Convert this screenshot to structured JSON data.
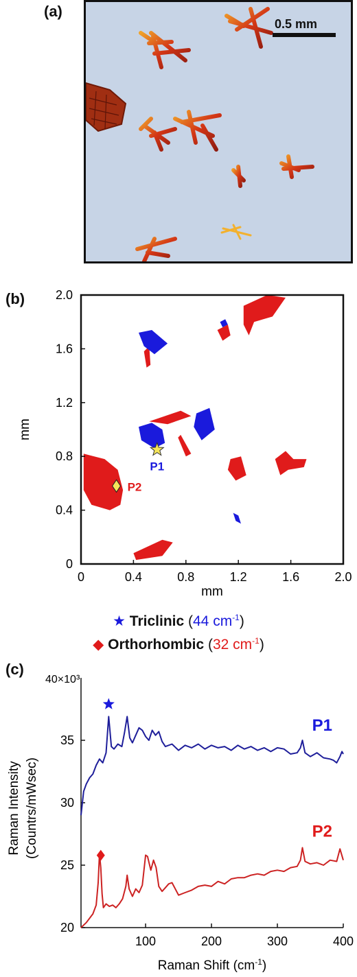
{
  "panels": {
    "a": "(a)",
    "b": "(b)",
    "c": "(c)"
  },
  "micrograph": {
    "scale_bar": "0.5 mm"
  },
  "colors": {
    "triclinic": "#1a1adc",
    "orthorhombic": "#e01b1b",
    "p1_line": "#1e1e9a",
    "p2_line": "#cc2222",
    "marker_fill": "#f5e55a"
  },
  "legend": {
    "triclinic": {
      "icon": "star-icon",
      "name": "Triclinic",
      "open": " (",
      "value": "44 cm",
      "sup": "-1",
      "close": ")"
    },
    "orthorhombic": {
      "icon": "diamond-icon",
      "name": "Orthorhombic",
      "open": " (",
      "value": "32 cm",
      "sup": "-1",
      "close": ")"
    }
  },
  "chart_data": [
    {
      "type": "heatmap",
      "xlabel": "mm",
      "ylabel": "mm",
      "xlim": [
        0,
        2.0
      ],
      "ylim": [
        0,
        2.0
      ],
      "xticks": [
        "0",
        "0.4",
        "0.8",
        "1.2",
        "1.6",
        "2.0"
      ],
      "yticks": [
        "0",
        "0.4",
        "0.8",
        "1.2",
        "1.6",
        "2.0"
      ],
      "points": [
        {
          "label": "P1",
          "x": 0.58,
          "y": 0.85,
          "phase": "Triclinic",
          "marker": "star"
        },
        {
          "label": "P2",
          "x": 0.27,
          "y": 0.58,
          "phase": "Orthorhombic",
          "marker": "diamond"
        }
      ],
      "regions": {
        "Orthorhombic": [
          [
            [
              0.02,
              0.82
            ],
            [
              0.18,
              0.78
            ],
            [
              0.28,
              0.7
            ],
            [
              0.32,
              0.55
            ],
            [
              0.3,
              0.44
            ],
            [
              0.22,
              0.4
            ],
            [
              0.08,
              0.44
            ],
            [
              0.02,
              0.55
            ]
          ],
          [
            [
              0.4,
              0.08
            ],
            [
              0.62,
              0.18
            ],
            [
              0.7,
              0.16
            ],
            [
              0.62,
              0.06
            ],
            [
              0.42,
              0.03
            ]
          ],
          [
            [
              1.04,
              1.74
            ],
            [
              1.12,
              1.78
            ],
            [
              1.14,
              1.7
            ],
            [
              1.08,
              1.66
            ]
          ],
          [
            [
              1.24,
              1.92
            ],
            [
              1.42,
              2.0
            ],
            [
              1.56,
              1.98
            ],
            [
              1.46,
              1.84
            ],
            [
              1.32,
              1.8
            ],
            [
              1.28,
              1.7
            ],
            [
              1.24,
              1.78
            ]
          ],
          [
            [
              1.48,
              0.78
            ],
            [
              1.56,
              0.84
            ],
            [
              1.62,
              0.78
            ],
            [
              1.72,
              0.78
            ],
            [
              1.7,
              0.72
            ],
            [
              1.58,
              0.7
            ],
            [
              1.52,
              0.66
            ]
          ],
          [
            [
              1.14,
              0.78
            ],
            [
              1.22,
              0.8
            ],
            [
              1.26,
              0.66
            ],
            [
              1.18,
              0.62
            ],
            [
              1.12,
              0.7
            ]
          ],
          [
            [
              0.52,
              1.06
            ],
            [
              0.76,
              1.14
            ],
            [
              0.84,
              1.1
            ],
            [
              0.66,
              1.04
            ]
          ],
          [
            [
              0.76,
              0.96
            ],
            [
              0.84,
              0.82
            ],
            [
              0.8,
              0.8
            ],
            [
              0.74,
              0.94
            ]
          ],
          [
            [
              0.48,
              1.58
            ],
            [
              0.52,
              1.62
            ],
            [
              0.53,
              1.48
            ],
            [
              0.5,
              1.46
            ]
          ]
        ],
        "Triclinic": [
          [
            [
              0.44,
              1.02
            ],
            [
              0.54,
              1.05
            ],
            [
              0.62,
              1.0
            ],
            [
              0.64,
              0.9
            ],
            [
              0.56,
              0.86
            ],
            [
              0.46,
              0.92
            ]
          ],
          [
            [
              0.44,
              1.72
            ],
            [
              0.54,
              1.74
            ],
            [
              0.66,
              1.64
            ],
            [
              0.56,
              1.56
            ],
            [
              0.48,
              1.62
            ]
          ],
          [
            [
              0.88,
              1.12
            ],
            [
              0.98,
              1.16
            ],
            [
              1.02,
              1.0
            ],
            [
              0.92,
              0.92
            ],
            [
              0.86,
              1.02
            ]
          ],
          [
            [
              1.06,
              1.8
            ],
            [
              1.1,
              1.82
            ],
            [
              1.12,
              1.78
            ],
            [
              1.08,
              1.76
            ]
          ],
          [
            [
              1.16,
              0.38
            ],
            [
              1.2,
              0.36
            ],
            [
              1.22,
              0.3
            ],
            [
              1.18,
              0.32
            ]
          ]
        ]
      }
    },
    {
      "type": "line",
      "xlabel": "Raman Shift (cm-1)",
      "ylabel_line1": "Raman Intensity",
      "ylabel_line2": "(Countrs/mWsec)",
      "xlim": [
        2,
        400
      ],
      "ylim": [
        20000,
        40000
      ],
      "y_multiplier": "40×10³",
      "xticks": [
        "100",
        "200",
        "300",
        "400"
      ],
      "yticks": [
        "20",
        "25",
        "30",
        "35"
      ],
      "series": [
        {
          "name": "P1",
          "marker": "star",
          "marker_at": 44,
          "x": [
            2,
            6,
            10,
            15,
            20,
            25,
            30,
            35,
            40,
            44,
            48,
            52,
            58,
            64,
            68,
            72,
            76,
            80,
            85,
            90,
            95,
            100,
            105,
            110,
            115,
            120,
            125,
            130,
            140,
            150,
            160,
            170,
            180,
            190,
            200,
            210,
            220,
            230,
            240,
            250,
            260,
            270,
            280,
            290,
            300,
            310,
            320,
            330,
            335,
            338,
            342,
            350,
            360,
            370,
            380,
            385,
            390,
            395,
            398,
            400
          ],
          "y": [
            29000,
            30900,
            31500,
            32000,
            32300,
            33000,
            33500,
            33200,
            34000,
            36900,
            34500,
            34300,
            34700,
            34500,
            35600,
            36900,
            35200,
            34800,
            35400,
            36000,
            35800,
            35300,
            35000,
            35800,
            35400,
            35700,
            34900,
            34500,
            34700,
            34200,
            34600,
            34400,
            34700,
            34300,
            34600,
            34400,
            34500,
            34200,
            34600,
            34300,
            34500,
            34200,
            34400,
            34100,
            34400,
            34300,
            33900,
            34000,
            34400,
            35000,
            34000,
            33700,
            34000,
            33600,
            33500,
            33400,
            33200,
            33700,
            34100,
            33900
          ]
        },
        {
          "name": "P2",
          "marker": "diamond",
          "marker_at": 32,
          "x": [
            2,
            10,
            20,
            25,
            28,
            30,
            32,
            34,
            36,
            40,
            45,
            50,
            55,
            60,
            65,
            70,
            72,
            75,
            80,
            85,
            90,
            95,
            100,
            103,
            108,
            112,
            116,
            120,
            125,
            130,
            135,
            140,
            150,
            160,
            170,
            180,
            190,
            200,
            210,
            220,
            230,
            240,
            250,
            260,
            270,
            280,
            290,
            300,
            310,
            320,
            330,
            335,
            338,
            342,
            350,
            360,
            370,
            380,
            390,
            395,
            400
          ],
          "y": [
            20000,
            20400,
            21100,
            21800,
            23600,
            25900,
            24800,
            22700,
            21600,
            21900,
            21700,
            21800,
            21600,
            21900,
            22300,
            23300,
            24200,
            23100,
            22500,
            23100,
            22800,
            23400,
            25800,
            25700,
            24600,
            25400,
            24800,
            23300,
            22900,
            23200,
            23500,
            23600,
            22600,
            22800,
            23000,
            23300,
            23400,
            23300,
            23700,
            23500,
            23900,
            24000,
            24000,
            24200,
            24300,
            24200,
            24500,
            24600,
            24500,
            24800,
            24900,
            25400,
            26400,
            25300,
            25100,
            25200,
            25000,
            25400,
            25300,
            26300,
            25400
          ]
        }
      ]
    }
  ]
}
